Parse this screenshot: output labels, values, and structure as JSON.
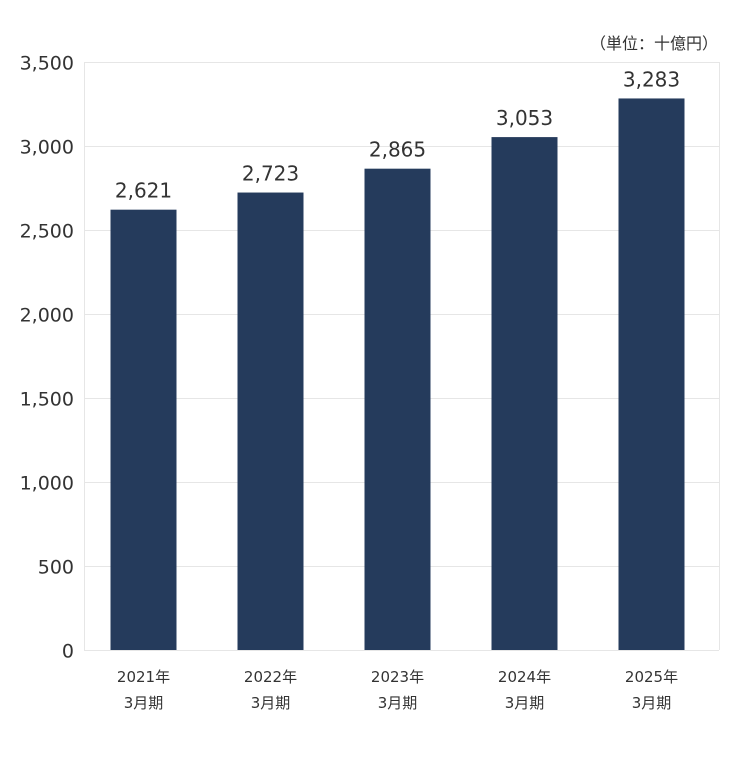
{
  "chart_data": {
    "type": "bar",
    "unit_label": "（単位：十億円）",
    "categories": [
      [
        "2021年",
        "3月期"
      ],
      [
        "2022年",
        "3月期"
      ],
      [
        "2023年",
        "3月期"
      ],
      [
        "2024年",
        "3月期"
      ],
      [
        "2025年",
        "3月期"
      ]
    ],
    "values": [
      2621,
      2723,
      2865,
      3053,
      3283
    ],
    "data_labels": [
      "2,621",
      "2,723",
      "2,865",
      "3,053",
      "3,283"
    ],
    "ylim": [
      0,
      3500
    ],
    "yticks": [
      0,
      500,
      1000,
      1500,
      2000,
      2500,
      3000,
      3500
    ],
    "ytick_labels": [
      "0",
      "500",
      "1,000",
      "1,500",
      "2,000",
      "2,500",
      "3,000",
      "3,500"
    ],
    "grid": true,
    "colors": {
      "bar": "#253b5c",
      "grid": "#e6e6e6"
    }
  }
}
